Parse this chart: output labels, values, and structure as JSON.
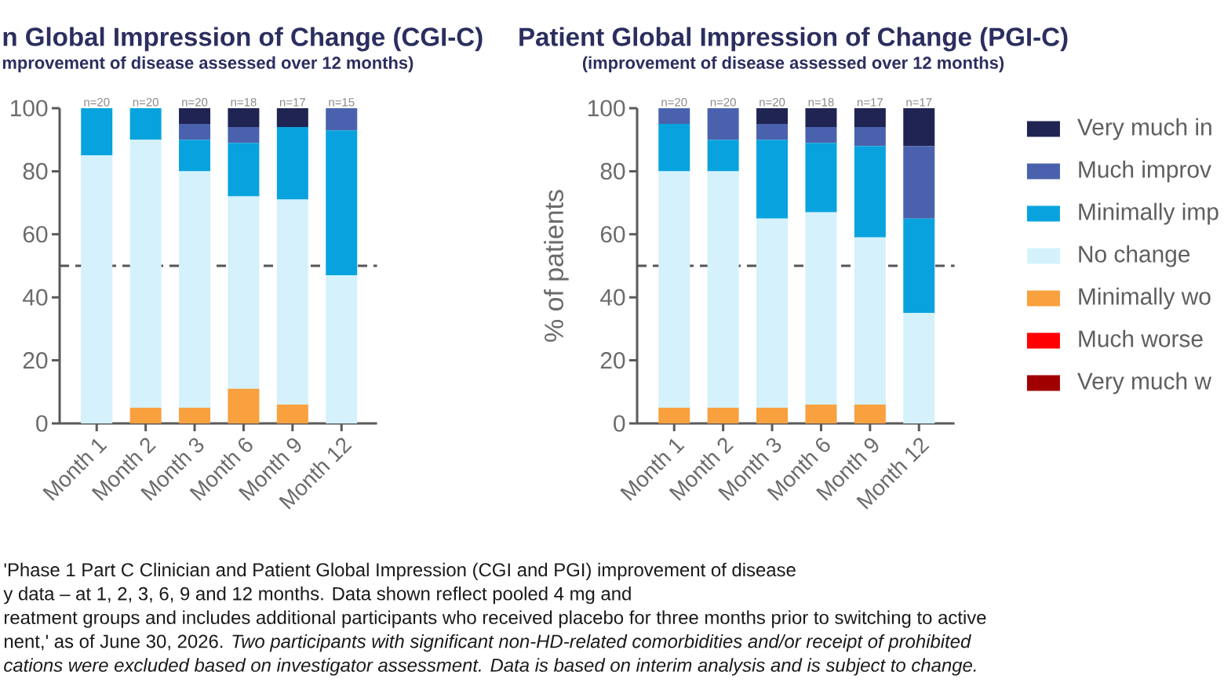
{
  "chart_data": [
    {
      "type": "bar",
      "stacked": true,
      "title": "n Global Impression of Change (CGI-C)",
      "subtitle": "mprovement of disease assessed over 12 months)",
      "categories": [
        "Month 1",
        "Month 2",
        "Month 3",
        "Month 6",
        "Month 9",
        "Month 12"
      ],
      "series": [
        {
          "color": "#f9a03f",
          "values": [
            0,
            5,
            5,
            11,
            6,
            0
          ]
        },
        {
          "color": "#d4f1fc",
          "values": [
            85,
            85,
            75,
            61,
            65,
            47
          ]
        },
        {
          "color": "#08a3de",
          "values": [
            15,
            10,
            10,
            17,
            23,
            46
          ]
        },
        {
          "color": "#4a62ad",
          "values": [
            0,
            0,
            5,
            5,
            0,
            7
          ]
        },
        {
          "color": "#1f2452",
          "values": [
            0,
            0,
            5,
            6,
            6,
            0
          ]
        }
      ],
      "ylim": [
        0,
        100
      ],
      "yticks": [
        0,
        20,
        40,
        60,
        80,
        100
      ],
      "ref_lines": [
        {
          "axis": "y",
          "value": 50,
          "color": "#555555",
          "line_style": "dashed"
        }
      ],
      "annotations": [
        {
          "text": "n=20",
          "x": "Month 1",
          "y": 100
        },
        {
          "text": "n=20",
          "x": "Month 2",
          "y": 100
        },
        {
          "text": "n=20",
          "x": "Month 3",
          "y": 100
        },
        {
          "text": "n=18",
          "x": "Month 6",
          "y": 100
        },
        {
          "text": "n=17",
          "x": "Month 9",
          "y": 100
        },
        {
          "text": "n=15",
          "x": "Month 12",
          "y": 100
        },
        "'Phase 1 Part C Clinician and Patient Global Impression (CGI and PGI) improvement of disease",
        "y data – at 1, 2, 3, 6, 9 and 12 months. Data shown reflect pooled 4 mg and",
        "reatment groups and includes additional participants who received placebo for three months prior to switching to active",
        "nent,' as of June 30, 2026. *Two participants with significant non-HD-related comorbidities and/or receipt of prohibited*",
        "*cations were excluded based on investigator assessment. Data is based on interim analysis and is subject to change.*"
      ]
    },
    {
      "type": "bar",
      "stacked": true,
      "title": "Patient Global Impression of Change (PGI-C)",
      "subtitle": "(improvement of disease assessed over 12 months)",
      "ylabel": "% of patients",
      "categories": [
        "Month 1",
        "Month 2",
        "Month 3",
        "Month 6",
        "Month 9",
        "Month 12"
      ],
      "series": [
        {
          "name": "Very much w",
          "color": "#a00000",
          "values": [
            0,
            0,
            0,
            0,
            0,
            0
          ]
        },
        {
          "name": "Much worse",
          "color": "#ff0000",
          "values": [
            0,
            0,
            0,
            0,
            0,
            0
          ]
        },
        {
          "name": "Minimally wo",
          "color": "#f9a03f",
          "values": [
            5,
            5,
            5,
            6,
            6,
            0
          ]
        },
        {
          "name": "No change",
          "color": "#d4f1fc",
          "values": [
            75,
            75,
            60,
            61,
            53,
            35
          ]
        },
        {
          "name": "Minimally imp",
          "color": "#08a3de",
          "values": [
            15,
            10,
            25,
            22,
            29,
            30
          ]
        },
        {
          "name": "Much improv",
          "color": "#4a62ad",
          "values": [
            5,
            10,
            5,
            5,
            6,
            23
          ]
        },
        {
          "name": "Very much in",
          "color": "#1f2452",
          "values": [
            0,
            0,
            5,
            6,
            6,
            12
          ]
        }
      ],
      "ylim": [
        0,
        100
      ],
      "yticks": [
        0,
        20,
        40,
        60,
        80,
        100
      ],
      "legend": "right",
      "ref_lines": [
        {
          "axis": "y",
          "value": 50,
          "color": "#555555",
          "line_style": "dashed"
        }
      ],
      "annotations": [
        {
          "text": "n=20",
          "x": "Month 1",
          "y": 100
        },
        {
          "text": "n=20",
          "x": "Month 2",
          "y": 100
        },
        {
          "text": "n=20",
          "x": "Month 3",
          "y": 100
        },
        {
          "text": "n=18",
          "x": "Month 6",
          "y": 100
        },
        {
          "text": "n=17",
          "x": "Month 9",
          "y": 100
        },
        {
          "text": "n=17",
          "x": "Month 12",
          "y": 100
        }
      ]
    }
  ]
}
